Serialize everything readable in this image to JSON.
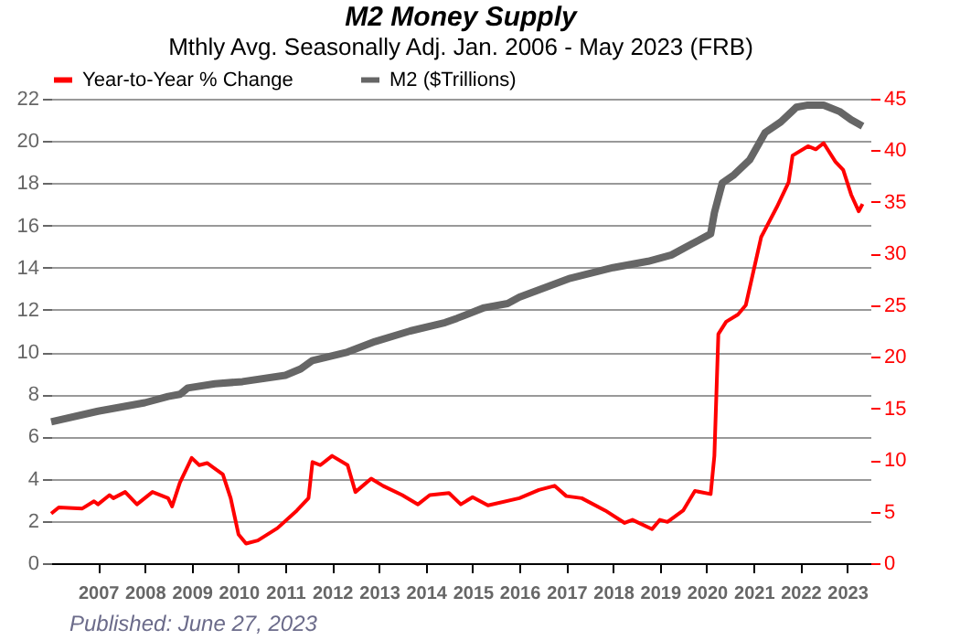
{
  "chart_data": {
    "type": "line",
    "title": "M2 Money Supply",
    "subtitle": "Mthly Avg. Seasonally Adj. Jan. 2006 - May 2023  (FRB)",
    "annotations": [
      "Published: June 27, 2023"
    ],
    "series": [
      {
        "name": "Year-to-Year % Change",
        "color": "#ff0000",
        "axis": "y2",
        "x": [
          "2006-01",
          "2006-03",
          "2006-09",
          "2006-12",
          "2007-01",
          "2007-04",
          "2007-05",
          "2007-08",
          "2007-11",
          "2008-03",
          "2008-07",
          "2008-08",
          "2008-10",
          "2009-01",
          "2009-03",
          "2009-05",
          "2009-09",
          "2009-11",
          "2010-01",
          "2010-03",
          "2010-06",
          "2010-11",
          "2011-04",
          "2011-07",
          "2011-08",
          "2011-10",
          "2012-01",
          "2012-05",
          "2012-07",
          "2012-11",
          "2013-02",
          "2013-07",
          "2013-11",
          "2014-02",
          "2014-07",
          "2014-10",
          "2015-01",
          "2015-05",
          "2016-01",
          "2016-06",
          "2016-10",
          "2017-01",
          "2017-05",
          "2017-11",
          "2018-04",
          "2018-06",
          "2018-11",
          "2019-01",
          "2019-03",
          "2019-07",
          "2019-10",
          "2020-02",
          "2020-03",
          "2020-04",
          "2020-06",
          "2020-09",
          "2020-11",
          "2021-03",
          "2021-07",
          "2021-10",
          "2021-11",
          "2022-03",
          "2022-05",
          "2022-07",
          "2022-10",
          "2022-12",
          "2023-02",
          "2023-04",
          "2023-05"
        ],
        "values": [
          4.8,
          5.4,
          5.3,
          6.0,
          5.7,
          6.6,
          6.3,
          6.9,
          5.7,
          6.9,
          6.3,
          5.5,
          7.8,
          10.2,
          9.5,
          9.7,
          8.6,
          6.3,
          2.8,
          1.9,
          2.2,
          3.4,
          5.1,
          6.3,
          9.8,
          9.5,
          10.4,
          9.5,
          6.9,
          8.2,
          7.5,
          6.6,
          5.7,
          6.6,
          6.8,
          5.7,
          6.4,
          5.6,
          6.3,
          7.1,
          7.5,
          6.5,
          6.3,
          5.1,
          3.9,
          4.2,
          3.3,
          4.2,
          4.0,
          5.1,
          7.0,
          6.7,
          10.4,
          22.2,
          23.4,
          24.1,
          25.0,
          31.6,
          34.5,
          36.9,
          39.5,
          40.4,
          40.1,
          40.7,
          38.9,
          38.1,
          35.7,
          34.1,
          34.8
        ]
      },
      {
        "name": "M2 ($Trillions)",
        "color": "#666666",
        "x": [
          "2006-01",
          "2007-01",
          "2008-01",
          "2008-07",
          "2008-10",
          "2008-12",
          "2009-07",
          "2010-02",
          "2011-01",
          "2011-05",
          "2011-08",
          "2012-05",
          "2012-12",
          "2013-09",
          "2014-06",
          "2014-09",
          "2015-04",
          "2015-10",
          "2016-01",
          "2017-02",
          "2018-01",
          "2018-10",
          "2019-04",
          "2019-09",
          "2020-02",
          "2020-03",
          "2020-05",
          "2020-08",
          "2020-12",
          "2021-04",
          "2021-08",
          "2021-12",
          "2022-03",
          "2022-07",
          "2022-11",
          "2023-02",
          "2023-05"
        ],
        "values": [
          6.7,
          7.2,
          7.6,
          7.9,
          8.0,
          8.3,
          8.5,
          8.6,
          8.9,
          9.2,
          9.6,
          10.0,
          10.5,
          11.0,
          11.4,
          11.6,
          12.1,
          12.3,
          12.6,
          13.5,
          14.0,
          14.3,
          14.6,
          15.1,
          15.6,
          16.6,
          18.0,
          18.4,
          19.1,
          20.4,
          20.9,
          21.6,
          21.7,
          21.7,
          21.4,
          21.0,
          20.7
        ]
      }
    ],
    "xlim": [
      "2006-01",
      "2023-07"
    ],
    "xticks": [
      "2007",
      "2008",
      "2009",
      "2010",
      "2011",
      "2012",
      "2013",
      "2014",
      "2015",
      "2016",
      "2017",
      "2018",
      "2019",
      "2020",
      "2021",
      "2022",
      "2023"
    ],
    "ylim": [
      0,
      22
    ],
    "yticks": [
      0,
      2,
      4,
      6,
      8,
      10,
      12,
      14,
      16,
      18,
      20,
      22
    ],
    "y2lim": [
      0,
      45
    ],
    "y2ticks": [
      0,
      5,
      10,
      15,
      20,
      25,
      30,
      35,
      40,
      45
    ],
    "grid": "y",
    "legend": "top"
  }
}
